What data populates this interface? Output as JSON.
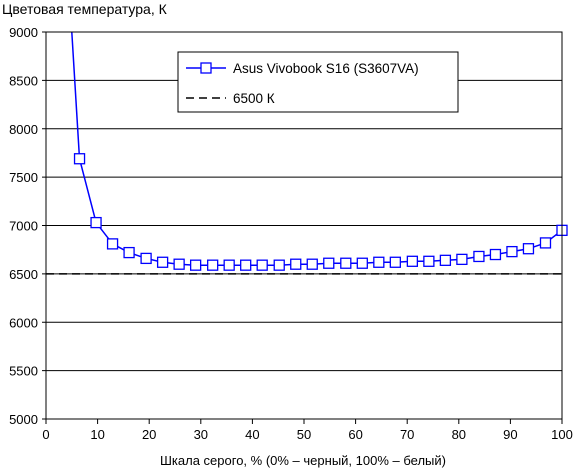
{
  "chart_data": {
    "type": "line",
    "title": "Цветовая температура, К",
    "xlabel": "Шкала серого, % (0% – черный, 100% – белый)",
    "ylabel": "",
    "xlim": [
      0,
      100
    ],
    "ylim": [
      5000,
      9000
    ],
    "x_ticks": [
      "0",
      "10",
      "20",
      "30",
      "40",
      "50",
      "60",
      "70",
      "80",
      "90",
      "100"
    ],
    "y_ticks": [
      "5000",
      "5500",
      "6000",
      "6500",
      "7000",
      "7500",
      "8000",
      "8500",
      "9000"
    ],
    "grid": "horizontal",
    "legend_position": "top-center",
    "series": [
      {
        "name": "Asus Vivobook S16 (S3607VA)",
        "color": "#0000ff",
        "marker": "square",
        "x": [
          5,
          6.5,
          9.7,
          12.9,
          16.1,
          19.4,
          22.6,
          25.8,
          29,
          32.3,
          35.5,
          38.7,
          41.9,
          45.2,
          48.4,
          51.6,
          54.8,
          58.1,
          61.3,
          64.5,
          67.7,
          71,
          74.2,
          77.4,
          80.6,
          83.9,
          87.1,
          90.3,
          93.5,
          96.8,
          100
        ],
        "y": [
          9000,
          7690,
          7030,
          6810,
          6720,
          6660,
          6620,
          6600,
          6590,
          6590,
          6590,
          6590,
          6590,
          6590,
          6600,
          6600,
          6610,
          6610,
          6610,
          6620,
          6620,
          6630,
          6630,
          6640,
          6650,
          6680,
          6700,
          6730,
          6760,
          6820,
          6950
        ],
        "marker_start_index": 1
      },
      {
        "name": "6500 К",
        "color": "#000000",
        "style": "dashed",
        "x": [
          0,
          100
        ],
        "y": [
          6500,
          6500
        ]
      }
    ]
  }
}
